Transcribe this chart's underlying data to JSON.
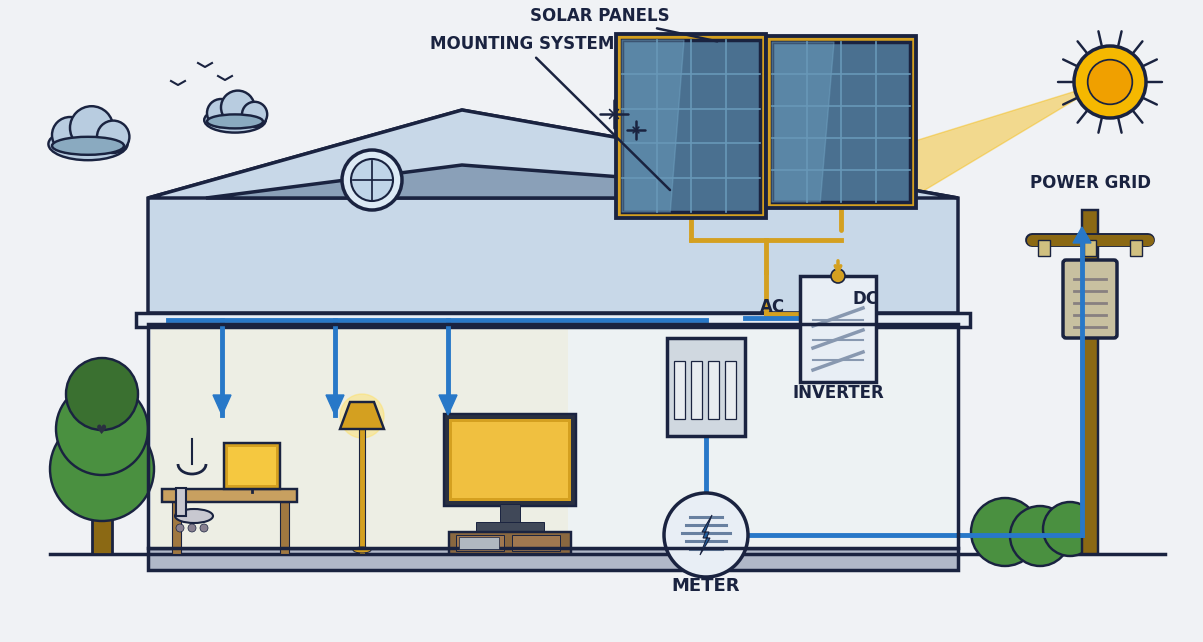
{
  "bg_color": "#f0f2f5",
  "outline_color": "#1a2340",
  "roof_fill": "#c8d8e8",
  "roof_dark": "#8aa0b8",
  "wall_fill": "#dde8f0",
  "sun_outer": "#f5b800",
  "sun_inner": "#f0a000",
  "solar_panel_bg": "#4a7090",
  "panel_frame": "#d4a020",
  "dc_wire_color": "#d4a020",
  "ac_wire_color": "#2878c8",
  "inverter_fill": "#e8eef5",
  "meter_fill": "#e8eef5",
  "breaker_fill": "#d0d8e0",
  "interior_glow": "#fff8e0",
  "tree_trunk": "#8B6914",
  "tree_foliage": "#4a9040",
  "tree_foliage2": "#3a7030",
  "cloud_fill": "#b8cce0",
  "cloud_dark": "#8aaac0",
  "lamp_color": "#d4a020",
  "desk_color": "#c8a060",
  "power_pole_color": "#8B6914",
  "label_color": "#1a2340",
  "labels": {
    "solar_panels": "SOLAR PANELS",
    "mounting_system": "MOUNTING SYSTEM",
    "dc": "DC",
    "ac": "AC",
    "inverter": "INVERTER",
    "meter": "METER",
    "power_grid": "POWER GRID"
  }
}
